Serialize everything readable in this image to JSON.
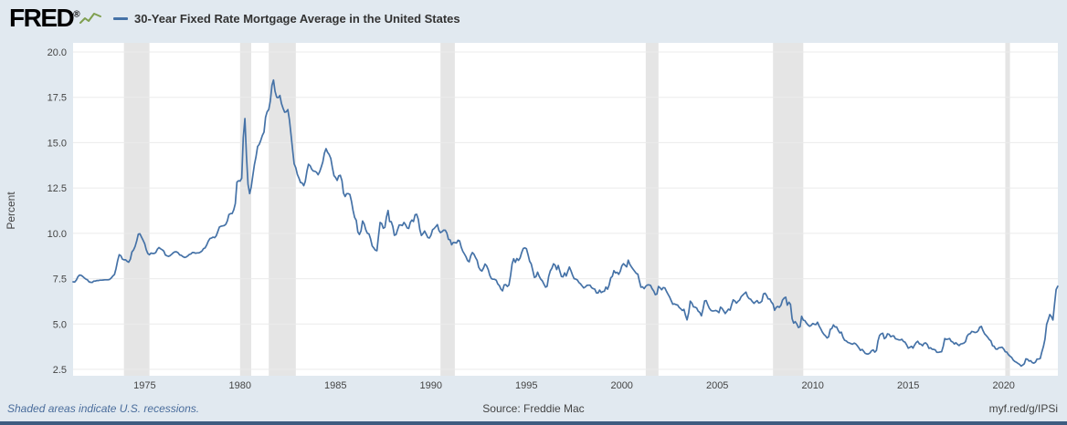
{
  "header": {
    "logo": "FRED",
    "registered": "®",
    "legend_label": "30-Year Fixed Rate Mortgage Average in the United States"
  },
  "footer": {
    "note": "Shaded areas indicate U.S. recessions.",
    "source": "Source: Freddie Mac",
    "short_url": "myf.red/g/IPSi"
  },
  "colors": {
    "background": "#e1e9f0",
    "plot_bg": "#ffffff",
    "line": "#4572a7",
    "recession": "#e5e5e5",
    "grid": "#ebebeb",
    "bottom_border": "#3e5c80",
    "fred_green": "#7f9f4f",
    "tick_text": "#444444",
    "note_text": "#4a6d9c"
  },
  "chart_data": {
    "type": "line",
    "title": "30-Year Fixed Rate Mortgage Average in the United States",
    "xlabel": "",
    "ylabel": "Percent",
    "y_range": [
      2.5,
      20.0
    ],
    "x_range": [
      1971.25,
      2022.84
    ],
    "y_ticks": [
      2.5,
      5.0,
      7.5,
      10.0,
      12.5,
      15.0,
      17.5,
      20.0
    ],
    "x_ticks": [
      1975,
      1980,
      1985,
      1990,
      1995,
      2000,
      2005,
      2010,
      2015,
      2020
    ],
    "grid": "horizontal",
    "legend_position": "top",
    "plot_bg": "#ffffff",
    "line_color": "#4572a7",
    "recession_color": "#e5e5e5",
    "grid_color": "#ebebeb",
    "recessions": [
      [
        1973.917,
        1975.25
      ],
      [
        1980.0,
        1980.583
      ],
      [
        1981.5,
        1982.917
      ],
      [
        1990.5,
        1991.25
      ],
      [
        2001.25,
        2001.917
      ],
      [
        2007.917,
        2009.5
      ],
      [
        2020.083,
        2020.333
      ]
    ],
    "x_start": 1971.25,
    "x_step_months": 1,
    "values": [
      7.33,
      7.31,
      7.42,
      7.6,
      7.7,
      7.69,
      7.63,
      7.55,
      7.48,
      7.44,
      7.33,
      7.3,
      7.29,
      7.37,
      7.37,
      7.4,
      7.4,
      7.42,
      7.42,
      7.43,
      7.44,
      7.44,
      7.44,
      7.46,
      7.54,
      7.65,
      7.73,
      8.05,
      8.5,
      8.82,
      8.77,
      8.58,
      8.54,
      8.54,
      8.46,
      8.41,
      8.58,
      8.97,
      9.09,
      9.28,
      9.59,
      9.96,
      9.98,
      9.79,
      9.62,
      9.43,
      9.1,
      8.89,
      8.82,
      8.91,
      8.89,
      8.89,
      8.94,
      9.13,
      9.22,
      9.15,
      9.1,
      9.02,
      8.81,
      8.76,
      8.73,
      8.77,
      8.85,
      8.93,
      8.98,
      8.98,
      8.93,
      8.81,
      8.79,
      8.72,
      8.67,
      8.69,
      8.75,
      8.83,
      8.86,
      8.94,
      8.94,
      8.9,
      8.92,
      8.92,
      8.96,
      9.02,
      9.16,
      9.2,
      9.36,
      9.57,
      9.71,
      9.74,
      9.79,
      9.76,
      9.86,
      10.11,
      10.35,
      10.39,
      10.41,
      10.43,
      10.5,
      10.69,
      11.04,
      11.09,
      11.09,
      11.3,
      11.64,
      12.83,
      12.9,
      12.88,
      13.04,
      15.28,
      16.33,
      14.26,
      12.71,
      12.19,
      12.56,
      13.2,
      13.79,
      14.21,
      14.79,
      14.9,
      15.13,
      15.4,
      15.58,
      16.4,
      16.7,
      16.83,
      17.29,
      18.16,
      18.45,
      17.83,
      17.5,
      17.48,
      17.6,
      17.16,
      16.89,
      16.68,
      16.7,
      16.82,
      16.27,
      15.43,
      14.61,
      13.83,
      13.62,
      13.25,
      13.04,
      12.8,
      12.78,
      12.63,
      12.87,
      13.43,
      13.81,
      13.73,
      13.54,
      13.44,
      13.42,
      13.37,
      13.23,
      13.39,
      13.65,
      13.94,
      14.42,
      14.67,
      14.47,
      14.35,
      14.13,
      13.64,
      13.18,
      13.08,
      12.92,
      13.17,
      13.2,
      12.91,
      12.22,
      12.03,
      12.19,
      12.19,
      12.14,
      11.78,
      11.26,
      10.88,
      10.71,
      10.08,
      9.94,
      10.14,
      10.68,
      10.51,
      10.2,
      10.01,
      9.97,
      9.7,
      9.31,
      9.2,
      9.08,
      9.04,
      9.83,
      10.6,
      10.54,
      10.28,
      10.33,
      10.89,
      11.26,
      10.65,
      10.64,
      10.38,
      9.89,
      9.93,
      10.2,
      10.46,
      10.46,
      10.43,
      10.6,
      10.48,
      10.3,
      10.27,
      10.61,
      10.73,
      10.65,
      11.03,
      11.05,
      10.77,
      10.2,
      9.88,
      9.99,
      10.13,
      9.95,
      9.77,
      9.74,
      9.9,
      10.2,
      10.27,
      10.37,
      10.48,
      10.16,
      10.04,
      10.1,
      10.18,
      10.17,
      10.01,
      9.67,
      9.64,
      9.37,
      9.5,
      9.49,
      9.47,
      9.62,
      9.58,
      9.24,
      9.01,
      8.86,
      8.71,
      8.5,
      8.43,
      8.76,
      8.94,
      8.85,
      8.67,
      8.51,
      8.13,
      7.98,
      7.92,
      8.09,
      8.31,
      8.21,
      7.99,
      7.68,
      7.5,
      7.47,
      7.47,
      7.42,
      7.21,
      7.11,
      6.92,
      6.83,
      7.16,
      7.17,
      7.07,
      7.15,
      7.68,
      8.32,
      8.6,
      8.4,
      8.61,
      8.51,
      8.64,
      8.93,
      9.17,
      9.2,
      9.15,
      8.83,
      8.46,
      8.32,
      7.96,
      7.57,
      7.61,
      7.86,
      7.64,
      7.48,
      7.38,
      7.2,
      7.03,
      7.08,
      7.62,
      7.93,
      8.07,
      8.32,
      8.25,
      8.0,
      8.23,
      7.92,
      7.62,
      7.6,
      7.82,
      7.65,
      7.9,
      8.14,
      7.94,
      7.69,
      7.5,
      7.48,
      7.43,
      7.29,
      7.21,
      7.1,
      6.99,
      7.04,
      7.13,
      7.14,
      7.14,
      7.0,
      6.95,
      6.92,
      6.72,
      6.71,
      6.87,
      6.74,
      6.79,
      6.81,
      7.04,
      6.92,
      7.15,
      7.55,
      7.63,
      7.94,
      7.82,
      7.85,
      7.74,
      7.91,
      8.21,
      8.33,
      8.24,
      8.15,
      8.52,
      8.29,
      8.15,
      8.03,
      7.91,
      7.8,
      7.75,
      7.38,
      7.03,
      7.05,
      6.95,
      7.08,
      7.15,
      7.16,
      7.13,
      6.95,
      6.82,
      6.62,
      6.66,
      7.07,
      7.0,
      6.89,
      7.01,
      6.99,
      6.81,
      6.65,
      6.49,
      6.29,
      6.09,
      6.11,
      6.07,
      6.05,
      5.92,
      5.84,
      5.75,
      5.81,
      5.48,
      5.23,
      5.63,
      6.26,
      6.15,
      5.95,
      5.93,
      5.88,
      5.71,
      5.64,
      5.45,
      5.83,
      6.27,
      6.29,
      6.06,
      5.87,
      5.75,
      5.72,
      5.73,
      5.75,
      5.71,
      5.63,
      5.93,
      5.86,
      5.72,
      5.58,
      5.7,
      5.82,
      5.77,
      6.07,
      6.33,
      6.27,
      6.15,
      6.25,
      6.32,
      6.51,
      6.6,
      6.68,
      6.76,
      6.52,
      6.4,
      6.36,
      6.24,
      6.14,
      6.22,
      6.29,
      6.16,
      6.18,
      6.26,
      6.66,
      6.7,
      6.57,
      6.38,
      6.38,
      6.21,
      6.1,
      5.76,
      5.92,
      5.97,
      5.92,
      6.04,
      6.32,
      6.43,
      6.48,
      6.04,
      6.2,
      6.09,
      5.29,
      5.05,
      5.13,
      5.0,
      4.81,
      4.86,
      5.42,
      5.22,
      5.19,
      5.06,
      4.95,
      4.88,
      4.93,
      5.03,
      4.99,
      4.97,
      5.1,
      4.89,
      4.74,
      4.56,
      4.43,
      4.35,
      4.23,
      4.3,
      4.71,
      4.76,
      4.95,
      4.84,
      4.84,
      4.64,
      4.51,
      4.55,
      4.27,
      4.11,
      4.07,
      3.99,
      3.96,
      3.92,
      3.89,
      3.95,
      3.91,
      3.8,
      3.68,
      3.55,
      3.6,
      3.5,
      3.38,
      3.35,
      3.35,
      3.41,
      3.53,
      3.57,
      3.45,
      3.54,
      4.07,
      4.37,
      4.46,
      4.49,
      4.19,
      4.26,
      4.46,
      4.43,
      4.3,
      4.34,
      4.34,
      4.19,
      4.16,
      4.13,
      4.12,
      4.16,
      4.04,
      4.0,
      3.86,
      3.67,
      3.71,
      3.77,
      3.67,
      3.84,
      3.98,
      4.05,
      3.91,
      3.89,
      3.8,
      3.94,
      3.96,
      3.87,
      3.66,
      3.69,
      3.61,
      3.6,
      3.57,
      3.44,
      3.44,
      3.46,
      3.47,
      3.77,
      4.2,
      4.15,
      4.17,
      4.2,
      4.05,
      4.01,
      3.9,
      3.97,
      3.88,
      3.81,
      3.9,
      3.92,
      3.95,
      4.03,
      4.33,
      4.44,
      4.47,
      4.59,
      4.57,
      4.53,
      4.55,
      4.63,
      4.83,
      4.87,
      4.64,
      4.46,
      4.37,
      4.27,
      4.14,
      4.07,
      3.8,
      3.77,
      3.62,
      3.61,
      3.69,
      3.7,
      3.72,
      3.62,
      3.47,
      3.45,
      3.31,
      3.23,
      3.16,
      3.02,
      2.94,
      2.89,
      2.83,
      2.77,
      2.68,
      2.74,
      2.81,
      3.08,
      3.06,
      2.96,
      2.98,
      2.87,
      2.84,
      2.9,
      3.07,
      3.07,
      3.1,
      3.45,
      3.76,
      4.17,
      4.98,
      5.23,
      5.52,
      5.41,
      5.22,
      6.11,
      6.9,
      7.08
    ]
  }
}
